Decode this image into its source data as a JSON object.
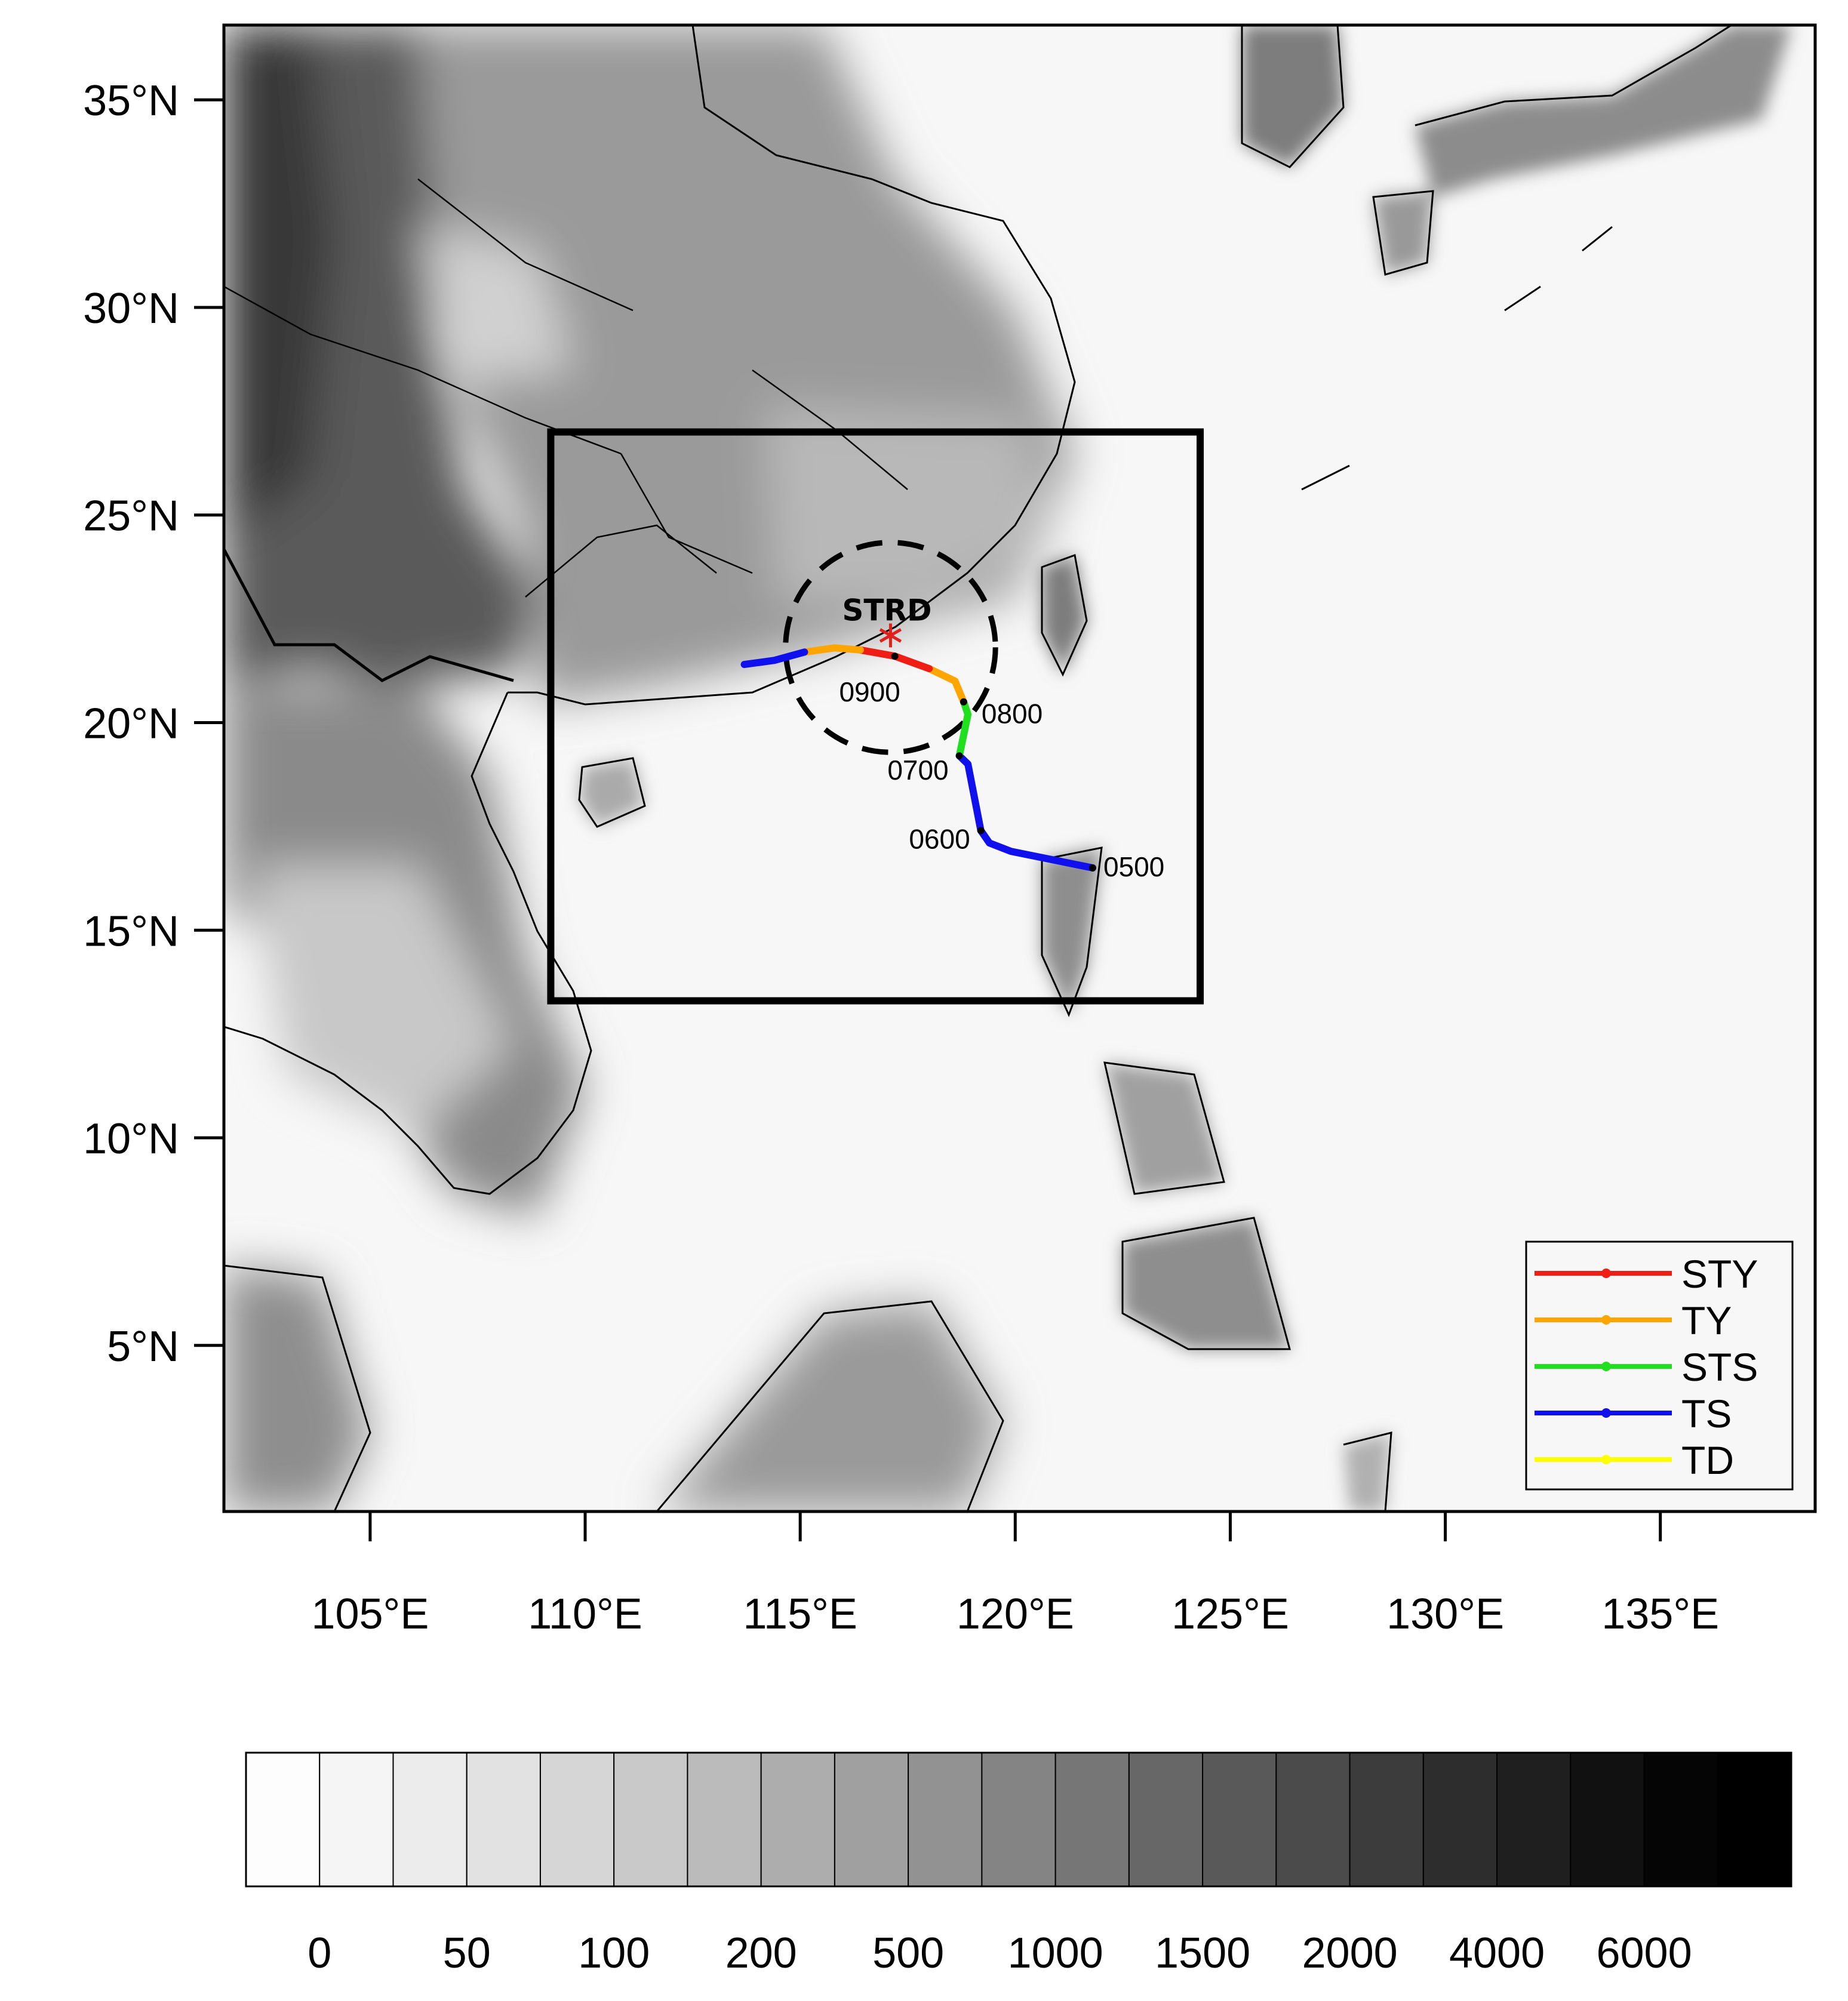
{
  "map": {
    "lat_range": [
      1.0,
      36.8
    ],
    "lon_range": [
      101.6,
      138.6
    ],
    "lat_ticks": [
      {
        "value": 35,
        "label": "35°N"
      },
      {
        "value": 30,
        "label": "30°N"
      },
      {
        "value": 25,
        "label": "25°N"
      },
      {
        "value": 20,
        "label": "20°N"
      },
      {
        "value": 15,
        "label": "15°N"
      },
      {
        "value": 10,
        "label": "10°N"
      },
      {
        "value": 5,
        "label": "5°N"
      }
    ],
    "lon_ticks": [
      {
        "value": 105,
        "label": "105°E"
      },
      {
        "value": 110,
        "label": "110°E"
      },
      {
        "value": 115,
        "label": "115°E"
      },
      {
        "value": 120,
        "label": "120°E"
      },
      {
        "value": 125,
        "label": "125°E"
      },
      {
        "value": 130,
        "label": "130°E"
      },
      {
        "value": 135,
        "label": "135°E"
      }
    ],
    "domain_box": {
      "lon_min": 109.2,
      "lon_max": 124.3,
      "lat_min": 13.3,
      "lat_max": 27.0
    },
    "station": {
      "label": "STRD",
      "lon": 117.1,
      "lat": 22.1,
      "radius_deg": 2.0,
      "marker_color": "#e0201b"
    },
    "track_colors": {
      "STY": "#f01d14",
      "TY": "#ffa500",
      "STS": "#1ee01e",
      "TS": "#1010ee",
      "TD": "#ffff00"
    },
    "track": [
      {
        "cat": "TS",
        "points": [
          [
            121.8,
            16.5
          ],
          [
            119.9,
            16.9
          ],
          [
            119.4,
            17.1
          ],
          [
            119.2,
            17.4
          ]
        ]
      },
      {
        "cat": "TS",
        "points": [
          [
            119.2,
            17.4
          ],
          [
            118.9,
            19.0
          ],
          [
            118.7,
            19.2
          ]
        ]
      },
      {
        "cat": "STS",
        "points": [
          [
            118.7,
            19.2
          ],
          [
            118.9,
            20.2
          ],
          [
            118.8,
            20.5
          ]
        ]
      },
      {
        "cat": "TY",
        "points": [
          [
            118.8,
            20.5
          ],
          [
            118.6,
            21.0
          ],
          [
            118.0,
            21.3
          ]
        ]
      },
      {
        "cat": "STY",
        "points": [
          [
            118.0,
            21.3
          ],
          [
            117.2,
            21.6
          ],
          [
            116.4,
            21.75
          ]
        ]
      },
      {
        "cat": "TY",
        "points": [
          [
            116.4,
            21.75
          ],
          [
            115.8,
            21.8
          ],
          [
            115.1,
            21.7
          ]
        ]
      },
      {
        "cat": "TS",
        "points": [
          [
            115.1,
            21.7
          ],
          [
            114.4,
            21.5
          ],
          [
            113.7,
            21.4
          ]
        ]
      }
    ],
    "time_marks": [
      {
        "label": "0500",
        "lon": 121.8,
        "lat": 16.5
      },
      {
        "label": "0600",
        "lon": 119.2,
        "lat": 17.4
      },
      {
        "label": "0700",
        "lon": 118.7,
        "lat": 19.2
      },
      {
        "label": "0800",
        "lon": 118.8,
        "lat": 20.5
      },
      {
        "label": "0900",
        "lon": 117.2,
        "lat": 21.6
      }
    ]
  },
  "legend": {
    "items": [
      {
        "label": "STY",
        "color": "#f01d14"
      },
      {
        "label": "TY",
        "color": "#ffa500"
      },
      {
        "label": "STS",
        "color": "#1ee01e"
      },
      {
        "label": "TS",
        "color": "#1010ee"
      },
      {
        "label": "TD",
        "color": "#ffff00"
      }
    ]
  },
  "colorbar": {
    "colors": [
      "#fdfdfd",
      "#f5f5f5",
      "#ececec",
      "#e2e2e2",
      "#d6d6d6",
      "#c9c9c9",
      "#bbbbbb",
      "#adadad",
      "#a0a0a0",
      "#929292",
      "#848484",
      "#767676",
      "#676767",
      "#595959",
      "#4b4b4b",
      "#3c3c3c",
      "#2d2d2d",
      "#1f1f1f",
      "#111111",
      "#050505",
      "#000000"
    ],
    "labels": [
      "0",
      "50",
      "100",
      "200",
      "500",
      "1000",
      "1500",
      "2000",
      "4000",
      "6000"
    ]
  }
}
